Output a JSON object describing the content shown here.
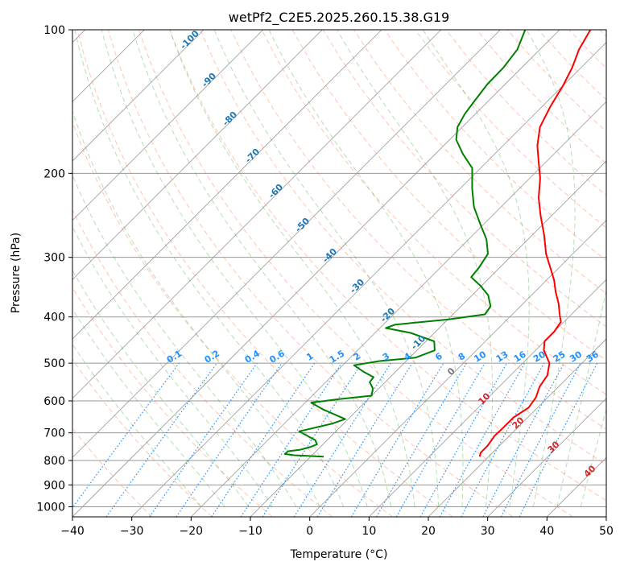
{
  "chart_data": {
    "type": "line",
    "subtype": "skew-t log-p diagram",
    "title": "wetPf2_C2E5.2025.260.15.38.G19",
    "xlabel": "Temperature (°C)",
    "ylabel": "Pressure (hPa)",
    "xlim": [
      -40,
      50
    ],
    "ylim": [
      1050,
      100
    ],
    "yscale": "log",
    "grid": true,
    "x_ticks": [
      -40,
      -30,
      -20,
      -10,
      0,
      10,
      20,
      30,
      40,
      50
    ],
    "x_tick_labels": [
      "−40",
      "−30",
      "−20",
      "−10",
      "0",
      "10",
      "20",
      "30",
      "40",
      "50"
    ],
    "y_ticks": [
      1000,
      900,
      800,
      700,
      600,
      500,
      400,
      300,
      200,
      100
    ],
    "y_tick_labels": [
      "1000",
      "900",
      "800",
      "700",
      "600",
      "500",
      "400",
      "300",
      "200",
      "100"
    ],
    "series": [
      {
        "role": "temperature",
        "color": "#ff0000",
        "points": [
          [
            18.5,
            785
          ],
          [
            18.0,
            770
          ],
          [
            18.0,
            745
          ],
          [
            17.5,
            710
          ],
          [
            17.6,
            680
          ],
          [
            17.6,
            650
          ],
          [
            18.5,
            620
          ],
          [
            18.0,
            590
          ],
          [
            16.8,
            560
          ],
          [
            16.2,
            530
          ],
          [
            14.5,
            500
          ],
          [
            11.4,
            470
          ],
          [
            10.0,
            450
          ],
          [
            10.0,
            430
          ],
          [
            9.5,
            410
          ],
          [
            8.0,
            395
          ],
          [
            6.0,
            375
          ],
          [
            3.6,
            355
          ],
          [
            1.3,
            335
          ],
          [
            -1.5,
            315
          ],
          [
            -4.5,
            295
          ],
          [
            -7.9,
            270
          ],
          [
            -11.9,
            245
          ],
          [
            -15.2,
            225
          ],
          [
            -18.2,
            205
          ],
          [
            -21.1,
            190
          ],
          [
            -24.2,
            175
          ],
          [
            -26.9,
            160
          ],
          [
            -28.6,
            145
          ],
          [
            -30.0,
            131
          ],
          [
            -31.5,
            120
          ],
          [
            -33.4,
            110
          ],
          [
            -34.8,
            100
          ]
        ]
      },
      {
        "role": "dewpoint",
        "color": "#008000",
        "points": [
          [
            -7.8,
            785
          ],
          [
            -13.0,
            780
          ],
          [
            -14.8,
            775
          ],
          [
            -14.7,
            765
          ],
          [
            -13.0,
            760
          ],
          [
            -11.7,
            750
          ],
          [
            -11.0,
            740
          ],
          [
            -12.0,
            725
          ],
          [
            -16.2,
            695
          ],
          [
            -12.0,
            670
          ],
          [
            -10.5,
            655
          ],
          [
            -15.9,
            625
          ],
          [
            -19.0,
            605
          ],
          [
            -15.0,
            595
          ],
          [
            -10.0,
            585
          ],
          [
            -11.0,
            565
          ],
          [
            -12.6,
            548
          ],
          [
            -12.8,
            535
          ],
          [
            -15.6,
            520
          ],
          [
            -18.1,
            505
          ],
          [
            -14.5,
            495
          ],
          [
            -9.0,
            487
          ],
          [
            -7.0,
            470
          ],
          [
            -8.6,
            450
          ],
          [
            -14.0,
            432
          ],
          [
            -19.0,
            422
          ],
          [
            -18.0,
            415
          ],
          [
            -10.0,
            405
          ],
          [
            -4.6,
            395
          ],
          [
            -5.0,
            380
          ],
          [
            -7.3,
            360
          ],
          [
            -10.0,
            345
          ],
          [
            -13.2,
            330
          ],
          [
            -13.5,
            315
          ],
          [
            -14.3,
            295
          ],
          [
            -17.0,
            275
          ],
          [
            -20.7,
            255
          ],
          [
            -24.6,
            235
          ],
          [
            -28.0,
            215
          ],
          [
            -31.4,
            195
          ],
          [
            -35.4,
            182
          ],
          [
            -38.9,
            170
          ],
          [
            -40.8,
            160
          ],
          [
            -41.8,
            150
          ],
          [
            -42.4,
            140
          ],
          [
            -43.0,
            130
          ],
          [
            -43.1,
            120
          ],
          [
            -43.8,
            110
          ],
          [
            -45.8,
            100
          ]
        ]
      }
    ],
    "dry_adiabat_labels": [
      "-100",
      "-90",
      "-80",
      "-70",
      "-60",
      "-50",
      "-40",
      "-30",
      "-20",
      "-10"
    ],
    "moist_adiabat_labels": [
      "0",
      "10",
      "20",
      "30",
      "40"
    ],
    "mixing_ratio_labels": [
      "0.1",
      "0.2",
      "0.4",
      "0.6",
      "1",
      "1.5",
      "2",
      "3",
      "4",
      "6",
      "8",
      "10",
      "13",
      "16",
      "20",
      "25",
      "30",
      "36"
    ],
    "colors": {
      "isotherm": "#999999",
      "isobar": "#999999",
      "dry_adiabat": "#ff7f50",
      "moist_adiabat": "#2ca02c",
      "mixing_ratio": "#1e90ff",
      "temperature": "#ff0000",
      "dewpoint": "#008000"
    }
  }
}
